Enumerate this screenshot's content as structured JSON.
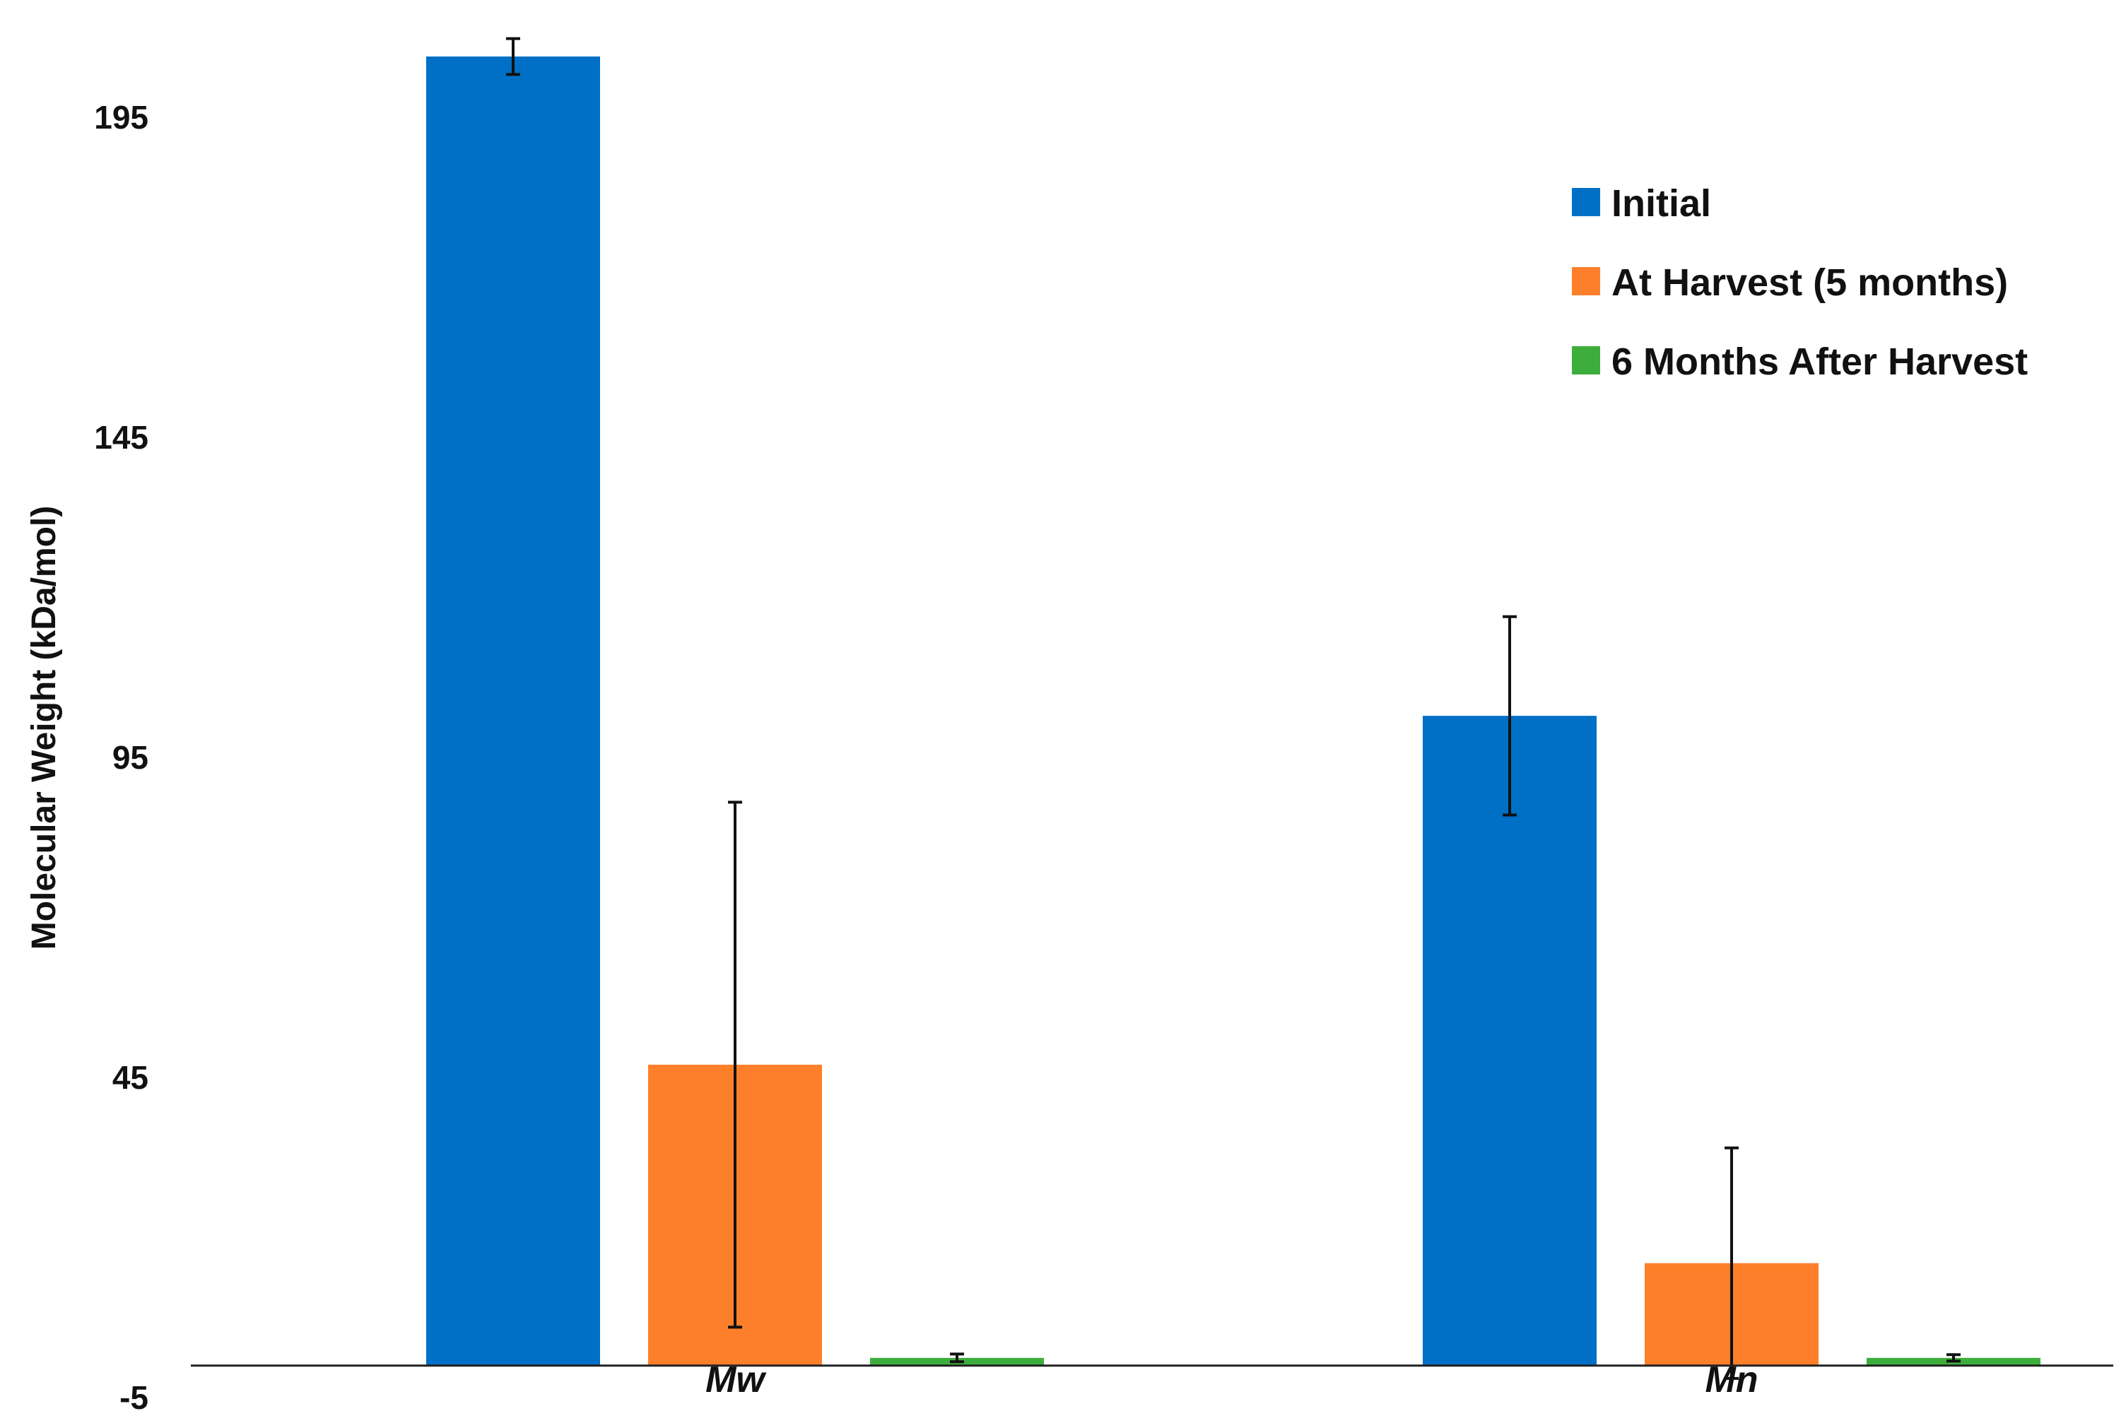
{
  "chart_data": {
    "type": "bar",
    "categories": [
      "Mw",
      "Mn"
    ],
    "series": [
      {
        "name": "Initial",
        "values": [
          204.5,
          101.5
        ],
        "errors": [
          2.8,
          15.5
        ],
        "color": "#0070C6"
      },
      {
        "name": "At Harvest (5 months)",
        "values": [
          47.0,
          16.0
        ],
        "errors": [
          41.0,
          18.0
        ],
        "color": "#FE7F2A"
      },
      {
        "name": "6 Months After Harvest",
        "values": [
          1.2,
          1.2
        ],
        "errors": [
          0.6,
          0.5
        ],
        "color": "#3DAE3C"
      }
    ],
    "ylabel": "Molecular Weight (kDa/mol)",
    "xlabel": "",
    "yticks": [
      -5,
      45,
      95,
      145,
      195
    ],
    "ylim": [
      -5,
      212
    ],
    "legend_position": "top-right",
    "grid": false
  }
}
